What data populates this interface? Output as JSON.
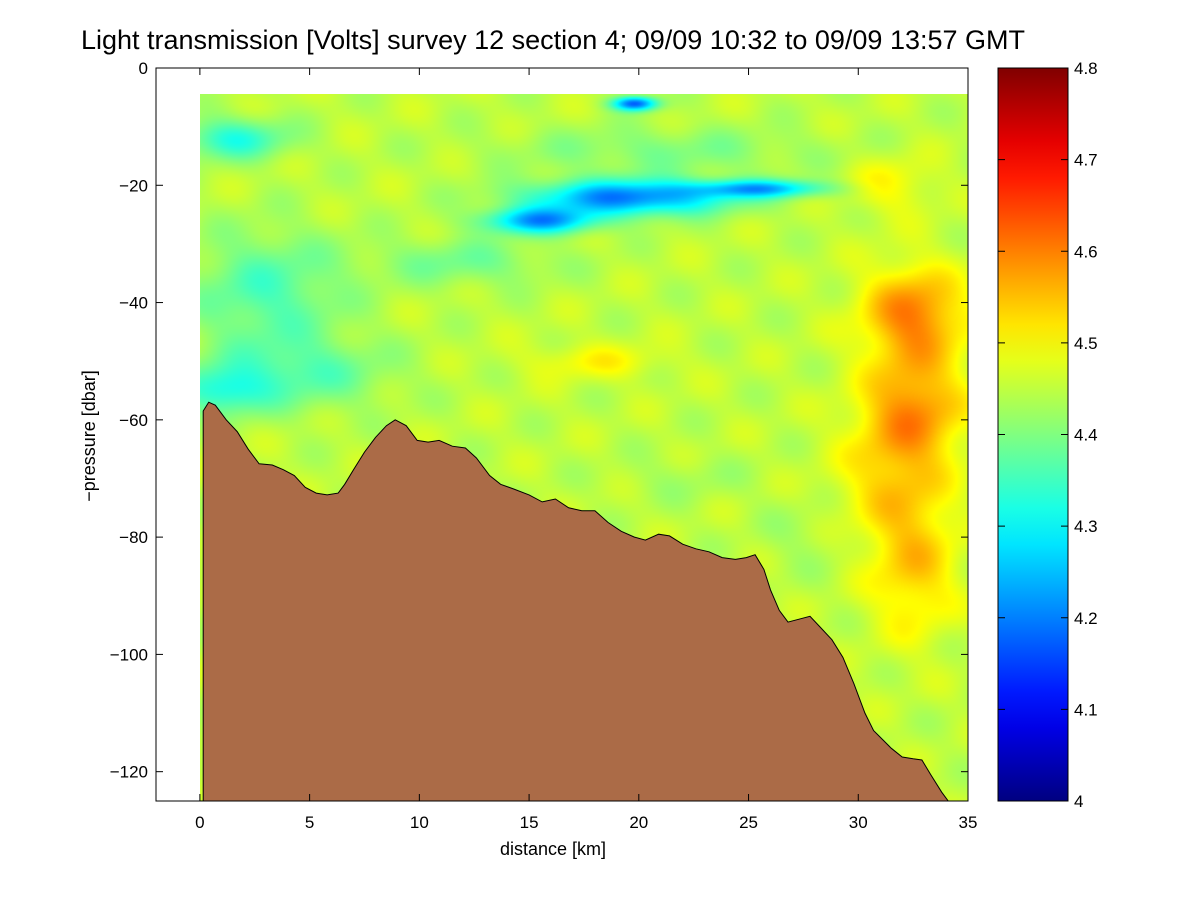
{
  "chart_data": {
    "type": "heatmap",
    "title": "Light transmission [Volts] survey 12 section 4; 09/09 10:32 to 09/09 13:57 GMT",
    "xlabel": "distance [km]",
    "ylabel": "−pressure [dbar]",
    "xlim": [
      -2,
      35
    ],
    "ylim": [
      -125,
      0
    ],
    "x_ticks": [
      0,
      5,
      10,
      15,
      20,
      25,
      30,
      35
    ],
    "x_tick_labels": [
      "0",
      "5",
      "10",
      "15",
      "20",
      "25",
      "30",
      "35"
    ],
    "y_ticks": [
      0,
      -20,
      -40,
      -60,
      -80,
      -100,
      -120
    ],
    "y_tick_labels": [
      "0",
      "−20",
      "−40",
      "−60",
      "−80",
      "−100",
      "−120"
    ],
    "colorbar": {
      "colormap": "jet",
      "range": [
        4,
        4.8
      ],
      "ticks": [
        4,
        4.1,
        4.2,
        4.3,
        4.4,
        4.5,
        4.6,
        4.7,
        4.8
      ],
      "tick_labels": [
        "4",
        "4.1",
        "4.2",
        "4.3",
        "4.4",
        "4.5",
        "4.6",
        "4.7",
        "4.8"
      ]
    },
    "data_top_depth": -4.5,
    "seafloor_color": "#ab6b47",
    "seafloor_profile": [
      {
        "x": 0.15,
        "y": -125
      },
      {
        "x": 0.15,
        "y": -58.5
      },
      {
        "x": 0.4,
        "y": -57.0
      },
      {
        "x": 0.7,
        "y": -57.5
      },
      {
        "x": 1.2,
        "y": -60.0
      },
      {
        "x": 1.7,
        "y": -62.0
      },
      {
        "x": 2.2,
        "y": -65.0
      },
      {
        "x": 2.7,
        "y": -67.5
      },
      {
        "x": 3.3,
        "y": -67.7
      },
      {
        "x": 3.8,
        "y": -68.5
      },
      {
        "x": 4.3,
        "y": -69.5
      },
      {
        "x": 4.8,
        "y": -71.5
      },
      {
        "x": 5.3,
        "y": -72.5
      },
      {
        "x": 5.8,
        "y": -72.8
      },
      {
        "x": 6.3,
        "y": -72.5
      },
      {
        "x": 6.6,
        "y": -71.0
      },
      {
        "x": 7.0,
        "y": -68.5
      },
      {
        "x": 7.5,
        "y": -65.5
      },
      {
        "x": 8.0,
        "y": -63.0
      },
      {
        "x": 8.5,
        "y": -61.0
      },
      {
        "x": 8.9,
        "y": -60.0
      },
      {
        "x": 9.4,
        "y": -61.0
      },
      {
        "x": 9.9,
        "y": -63.5
      },
      {
        "x": 10.4,
        "y": -63.8
      },
      {
        "x": 10.9,
        "y": -63.5
      },
      {
        "x": 11.5,
        "y": -64.5
      },
      {
        "x": 12.1,
        "y": -64.8
      },
      {
        "x": 12.6,
        "y": -66.5
      },
      {
        "x": 13.2,
        "y": -69.5
      },
      {
        "x": 13.7,
        "y": -71.0
      },
      {
        "x": 14.3,
        "y": -71.8
      },
      {
        "x": 15.0,
        "y": -72.8
      },
      {
        "x": 15.6,
        "y": -74.0
      },
      {
        "x": 16.2,
        "y": -73.5
      },
      {
        "x": 16.8,
        "y": -75.0
      },
      {
        "x": 17.4,
        "y": -75.5
      },
      {
        "x": 18.0,
        "y": -75.5
      },
      {
        "x": 18.6,
        "y": -77.5
      },
      {
        "x": 19.2,
        "y": -79.0
      },
      {
        "x": 19.8,
        "y": -80.0
      },
      {
        "x": 20.3,
        "y": -80.5
      },
      {
        "x": 20.9,
        "y": -79.5
      },
      {
        "x": 21.4,
        "y": -79.8
      },
      {
        "x": 22.0,
        "y": -81.2
      },
      {
        "x": 22.6,
        "y": -82.0
      },
      {
        "x": 23.2,
        "y": -82.5
      },
      {
        "x": 23.8,
        "y": -83.5
      },
      {
        "x": 24.4,
        "y": -83.8
      },
      {
        "x": 24.9,
        "y": -83.5
      },
      {
        "x": 25.3,
        "y": -83.0
      },
      {
        "x": 25.7,
        "y": -85.5
      },
      {
        "x": 26.0,
        "y": -89.0
      },
      {
        "x": 26.4,
        "y": -92.5
      },
      {
        "x": 26.8,
        "y": -94.5
      },
      {
        "x": 27.3,
        "y": -94.0
      },
      {
        "x": 27.8,
        "y": -93.5
      },
      {
        "x": 28.3,
        "y": -95.5
      },
      {
        "x": 28.8,
        "y": -97.5
      },
      {
        "x": 29.3,
        "y": -100.5
      },
      {
        "x": 29.8,
        "y": -105.0
      },
      {
        "x": 30.3,
        "y": -110.0
      },
      {
        "x": 30.7,
        "y": -113.0
      },
      {
        "x": 31.1,
        "y": -114.5
      },
      {
        "x": 31.5,
        "y": -116.0
      },
      {
        "x": 32.0,
        "y": -117.5
      },
      {
        "x": 32.5,
        "y": -117.8
      },
      {
        "x": 32.9,
        "y": -118.0
      },
      {
        "x": 33.3,
        "y": -120.5
      },
      {
        "x": 33.8,
        "y": -123.5
      },
      {
        "x": 34.1,
        "y": -125.0
      }
    ],
    "value_field": {
      "background": 4.45,
      "features": [
        {
          "x": 19.5,
          "y": -22,
          "rx": 4.5,
          "ry": 3.0,
          "value": 4.2
        },
        {
          "x": 15.5,
          "y": -26,
          "rx": 2.5,
          "ry": 2.2,
          "value": 4.23
        },
        {
          "x": 25.5,
          "y": -20.5,
          "rx": 3.0,
          "ry": 1.5,
          "value": 4.26
        },
        {
          "x": 19.8,
          "y": -6,
          "rx": 1.0,
          "ry": 1.2,
          "value": 4.18
        },
        {
          "x": 1.5,
          "y": -12,
          "rx": 2.5,
          "ry": 3.5,
          "value": 4.33
        },
        {
          "x": 3.0,
          "y": -38,
          "rx": 3.5,
          "ry": 10.0,
          "value": 4.36
        },
        {
          "x": 4.5,
          "y": -52,
          "rx": 4.0,
          "ry": 6.0,
          "value": 4.37
        },
        {
          "x": 1.0,
          "y": -55,
          "rx": 2.0,
          "ry": 4.0,
          "value": 4.34
        },
        {
          "x": 12.0,
          "y": -33,
          "rx": 4.0,
          "ry": 4.0,
          "value": 4.39
        },
        {
          "x": 21.0,
          "y": -14,
          "rx": 7.0,
          "ry": 4.0,
          "value": 4.4
        },
        {
          "x": 32.5,
          "y": -42,
          "rx": 2.3,
          "ry": 8.0,
          "value": 4.6
        },
        {
          "x": 32.5,
          "y": -58,
          "rx": 2.3,
          "ry": 9.0,
          "value": 4.58
        },
        {
          "x": 32.5,
          "y": -85,
          "rx": 2.0,
          "ry": 12.0,
          "value": 4.54
        },
        {
          "x": 31.5,
          "y": -70,
          "rx": 2.5,
          "ry": 10.0,
          "value": 4.52
        },
        {
          "x": 31.5,
          "y": -20,
          "rx": 2.0,
          "ry": 5.0,
          "value": 4.5
        },
        {
          "x": 18.0,
          "y": -50,
          "rx": 3.0,
          "ry": 3.0,
          "value": 4.5
        },
        {
          "x": 27.5,
          "y": -80,
          "rx": 2.0,
          "ry": 6.0,
          "value": 4.43
        },
        {
          "x": 22.0,
          "y": -70,
          "rx": 3.0,
          "ry": 4.0,
          "value": 4.43
        }
      ]
    }
  }
}
